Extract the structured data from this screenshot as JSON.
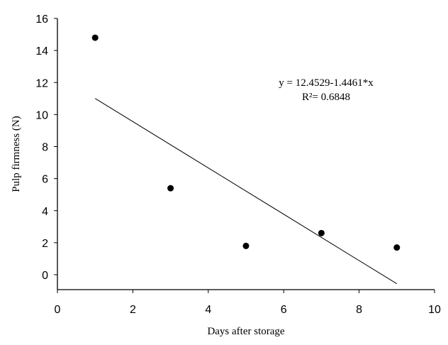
{
  "chart_data": {
    "type": "scatter",
    "title": "",
    "xlabel": "Days after storage",
    "ylabel": "Pulp firmness (N)",
    "xlim": [
      0,
      10
    ],
    "ylim": [
      -1,
      16
    ],
    "xticks": [
      0,
      2,
      4,
      6,
      8,
      10
    ],
    "yticks": [
      0,
      2,
      4,
      6,
      8,
      10,
      12,
      14,
      16
    ],
    "grid": false,
    "legend": null,
    "series": [
      {
        "name": "Pulp firmness",
        "marker": "filled-circle",
        "color": "#000000",
        "x": [
          1,
          3,
          5,
          7,
          9
        ],
        "y": [
          14.8,
          5.4,
          1.8,
          2.6,
          1.7
        ]
      }
    ],
    "regression": {
      "intercept": 12.4529,
      "slope": -1.4461,
      "x_range": [
        1,
        9
      ],
      "color": "#000000"
    },
    "annotations": [
      {
        "text": "y = 12.4529-1.4461*x",
        "x": 5.5,
        "y": 12.9
      },
      {
        "text": "R²= 0.6848",
        "x": 5.5,
        "y": 11.5
      }
    ]
  }
}
